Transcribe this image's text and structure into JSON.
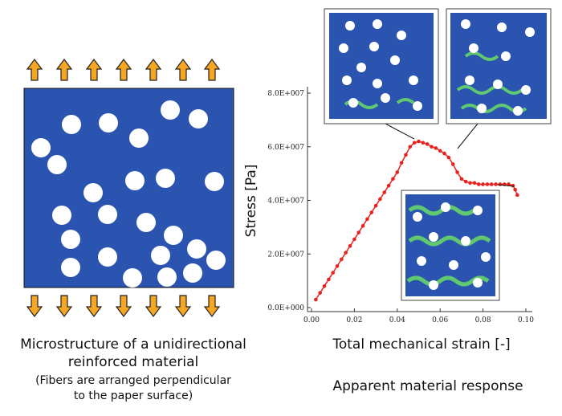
{
  "chart_data": {
    "type": "line",
    "xlabel": "Total mechanical strain [-]",
    "ylabel": "Stress [Pa]",
    "xlim": [
      0,
      0.1
    ],
    "ylim": [
      0,
      80000000
    ],
    "xticks": [
      {
        "value": 0,
        "label": "0.00"
      },
      {
        "value": 0.02,
        "label": "0.02"
      },
      {
        "value": 0.04,
        "label": "0.04"
      },
      {
        "value": 0.06,
        "label": "0.06"
      },
      {
        "value": 0.08,
        "label": "0.08"
      },
      {
        "value": 0.1,
        "label": "0.10"
      }
    ],
    "yticks": [
      {
        "value": 0,
        "label": "0.0E+000"
      },
      {
        "value": 20000000,
        "label": "2.0E+007"
      },
      {
        "value": 40000000,
        "label": "4.0E+007"
      },
      {
        "value": 60000000,
        "label": "6.0E+007"
      },
      {
        "value": 80000000,
        "label": "8.0E+007"
      }
    ],
    "x": [
      0.002,
      0.004,
      0.006,
      0.008,
      0.01,
      0.012,
      0.014,
      0.016,
      0.018,
      0.02,
      0.022,
      0.024,
      0.026,
      0.028,
      0.03,
      0.032,
      0.034,
      0.036,
      0.038,
      0.04,
      0.042,
      0.044,
      0.046,
      0.048,
      0.05,
      0.052,
      0.054,
      0.056,
      0.058,
      0.06,
      0.062,
      0.064,
      0.066,
      0.068,
      0.07,
      0.072,
      0.074,
      0.076,
      0.078,
      0.08,
      0.082,
      0.084,
      0.086,
      0.088,
      0.09,
      0.092,
      0.094,
      0.095,
      0.096
    ],
    "series": [
      {
        "color": "#e8231f",
        "values": [
          3000000,
          5500000,
          8000000,
          10500000,
          13000000,
          15500000,
          18000000,
          20500000,
          23000000,
          25500000,
          28000000,
          30500000,
          33000000,
          35500000,
          38000000,
          40500000,
          43000000,
          45500000,
          48000000,
          50500000,
          54000000,
          57000000,
          60000000,
          61500000,
          62000000,
          61500000,
          61000000,
          60000000,
          59500000,
          58500000,
          57500000,
          56000000,
          53500000,
          50500000,
          48000000,
          47000000,
          46500000,
          46500000,
          46000000,
          46000000,
          46000000,
          46000000,
          46000000,
          46000000,
          46000000,
          46000000,
          45500000,
          44000000,
          42000000
        ]
      }
    ]
  },
  "left_caption": [
    "Microstructure of a unidirectional",
    "reinforced material"
  ],
  "left_note": [
    "(Fibers are arranged perpendicular",
    "to the paper surface)"
  ],
  "right_caption": "Apparent material response"
}
